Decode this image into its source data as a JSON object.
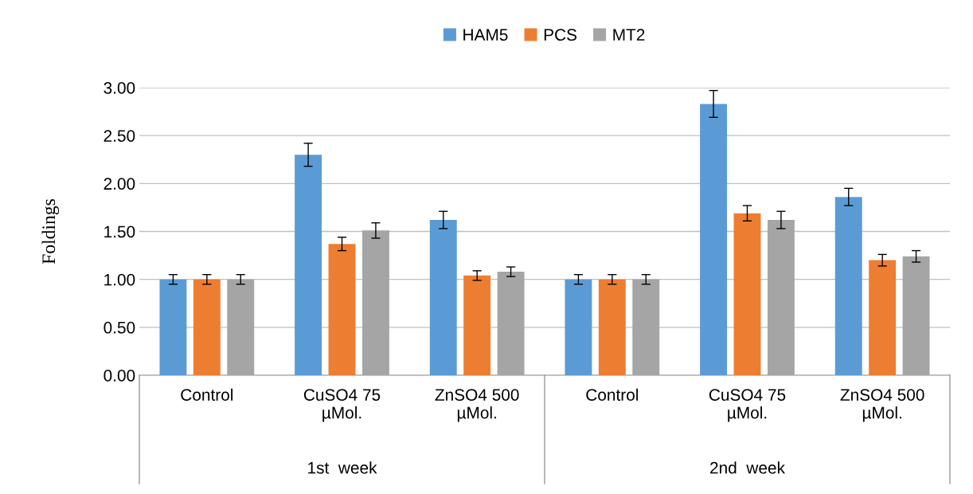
{
  "chart_data": {
    "type": "bar",
    "ylabel": "Foldings",
    "categories": [
      "Control",
      "CuSO4 75\nµMol.",
      "ZnSO4 500\nµMol.",
      "Control",
      "CuSO4 75\nµMol.",
      "ZnSO4 500\nµMol."
    ],
    "series": [
      {
        "name": "HAM5",
        "color": "#5b9bd5",
        "values": [
          1.0,
          2.3,
          1.62,
          1.0,
          2.83,
          1.86
        ],
        "errors": [
          0.05,
          0.12,
          0.09,
          0.05,
          0.14,
          0.09
        ]
      },
      {
        "name": "PCS",
        "color": "#ed7d31",
        "values": [
          1.0,
          1.37,
          1.04,
          1.0,
          1.69,
          1.2
        ],
        "errors": [
          0.05,
          0.07,
          0.05,
          0.05,
          0.08,
          0.06
        ]
      },
      {
        "name": "MT2",
        "color": "#a5a5a5",
        "values": [
          1.0,
          1.51,
          1.08,
          1.0,
          1.62,
          1.24
        ],
        "errors": [
          0.05,
          0.08,
          0.05,
          0.05,
          0.09,
          0.06
        ]
      }
    ],
    "annotations": [
      "1st  week",
      "2nd  week"
    ],
    "ylim": [
      0,
      3
    ],
    "yticks": [
      {
        "value": 0,
        "label": "0.00"
      },
      {
        "value": 0.5,
        "label": "0.50"
      },
      {
        "value": 1,
        "label": "1.00"
      },
      {
        "value": 1.5,
        "label": "1.50"
      },
      {
        "value": 2,
        "label": "2.00"
      },
      {
        "value": 2.5,
        "label": "2.50"
      },
      {
        "value": 3,
        "label": "3.00"
      }
    ],
    "grid": "y",
    "legend": "top"
  }
}
